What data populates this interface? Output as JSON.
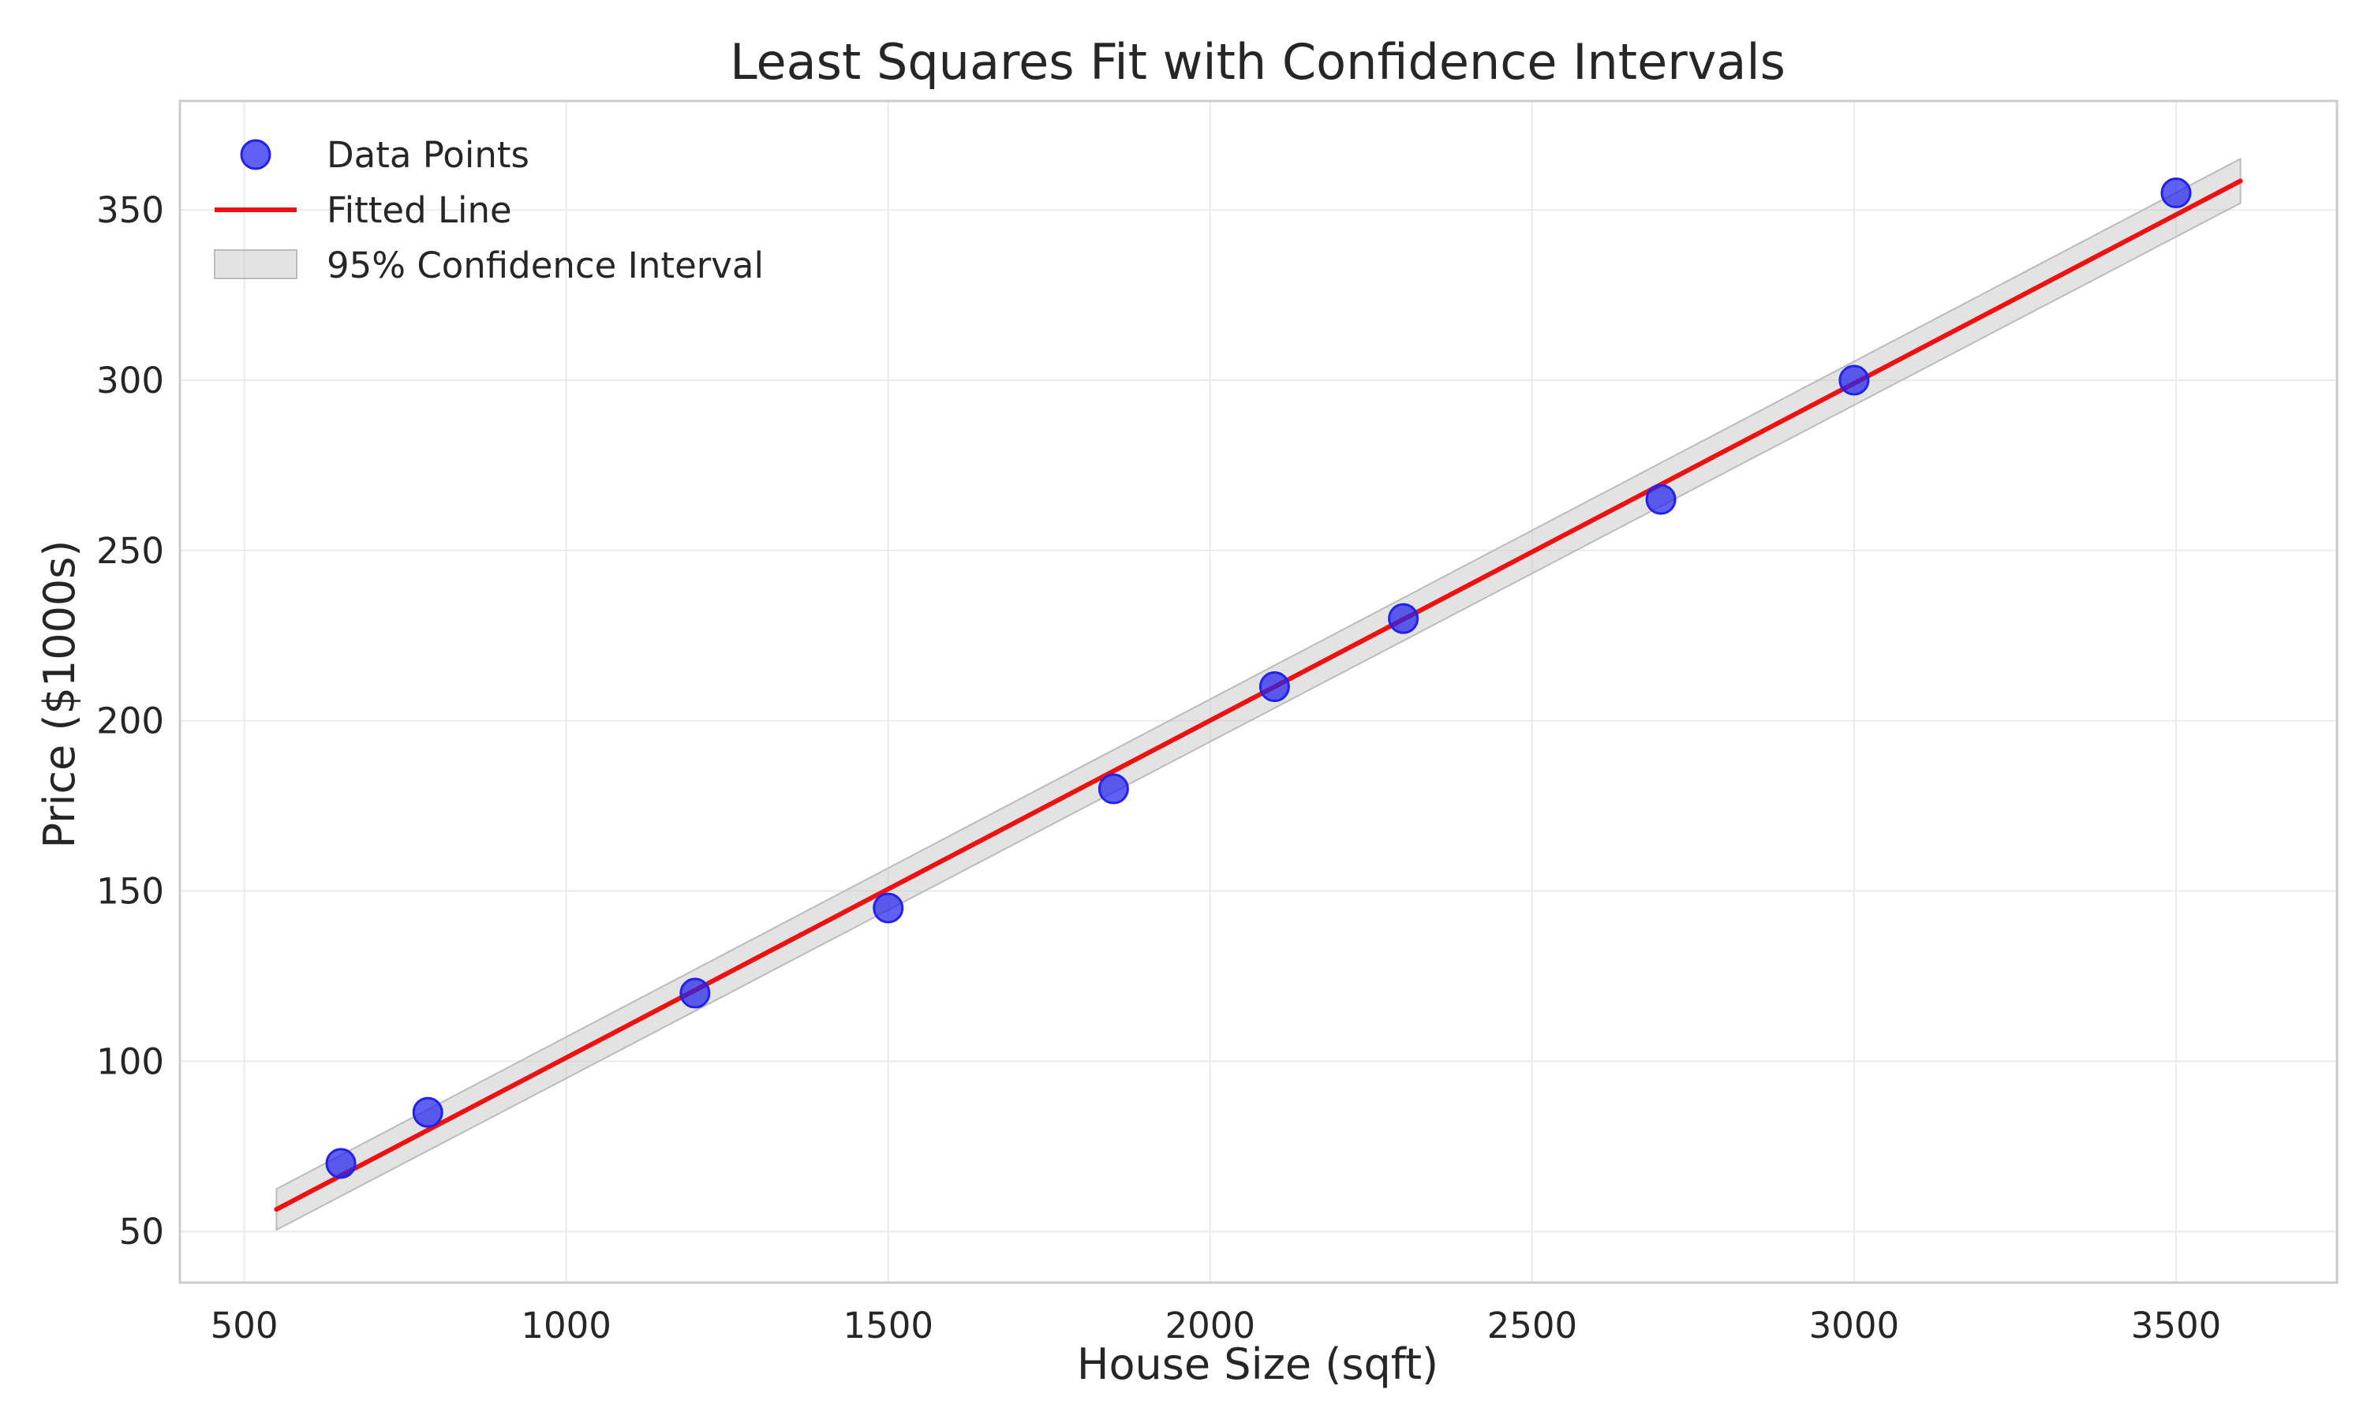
{
  "chart_data": {
    "type": "scatter",
    "title": "Least Squares Fit with Confidence Intervals",
    "xlabel": "House Size (sqft)",
    "ylabel": "Price ($1000s)",
    "xlim": [
      400,
      3750
    ],
    "ylim": [
      35,
      382
    ],
    "xticks": [
      500,
      1000,
      1500,
      2000,
      2500,
      3000,
      3500
    ],
    "yticks": [
      50,
      100,
      150,
      200,
      250,
      300,
      350
    ],
    "grid": true,
    "legend_position": "top-left",
    "series": [
      {
        "name": "Data Points",
        "kind": "scatter",
        "color": "#2222ee",
        "x": [
          650,
          785,
          1200,
          1500,
          1850,
          2100,
          2300,
          2700,
          3000,
          3500
        ],
        "y": [
          70,
          85,
          120,
          145,
          180,
          210,
          230,
          265,
          300,
          355
        ]
      },
      {
        "name": "Fitted Line",
        "kind": "line",
        "color": "#ee1111",
        "x": [
          550,
          3600
        ],
        "y": [
          56.5,
          358.5
        ]
      },
      {
        "name": "95% Confidence Interval",
        "kind": "band",
        "color": "#bbbbbb",
        "x": [
          550,
          3600
        ],
        "lower": [
          50.5,
          352.0
        ],
        "upper": [
          62.5,
          365.0
        ]
      }
    ]
  }
}
